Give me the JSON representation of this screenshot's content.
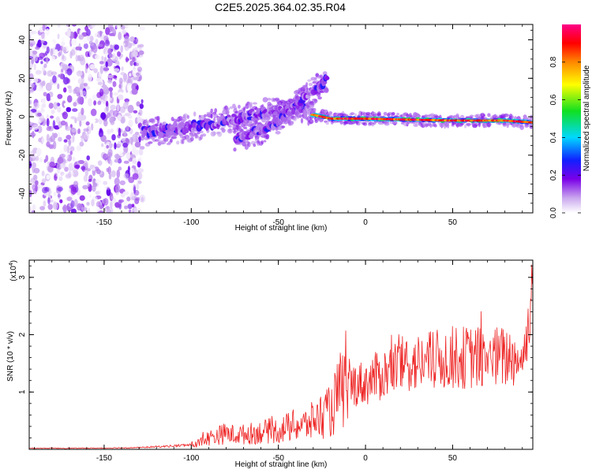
{
  "title": "C2E5.2025.364.02.35.R04",
  "chart_data": [
    {
      "type": "heatmap",
      "xlabel": "Height of straight line (km)",
      "ylabel": "Frequency (Hz)",
      "xlim": [
        -193,
        96
      ],
      "ylim": [
        -50,
        48
      ],
      "xticks": [
        -150,
        -100,
        -50,
        0,
        50
      ],
      "yticks": [
        -40,
        -20,
        0,
        20,
        40
      ],
      "colorbar": {
        "label": "Normalized spectral amplitude",
        "range": [
          0,
          1
        ],
        "ticks": [
          0.0,
          0.2,
          0.4,
          0.6,
          0.8
        ],
        "tick_labels": [
          "0.0",
          "0.2",
          "0.4",
          "0.6",
          "0.8"
        ]
      },
      "features": [
        {
          "name": "scattered noise",
          "x_range": [
            -193,
            -128
          ],
          "y_range": [
            -50,
            48
          ],
          "amplitude_range": [
            0.0,
            0.15
          ]
        },
        {
          "name": "lower track",
          "points": [
            [
              -128,
              -8
            ],
            [
              -110,
              -7
            ],
            [
              -90,
              -4
            ],
            [
              -70,
              0
            ],
            [
              -50,
              3
            ],
            [
              -40,
              4
            ],
            [
              -30,
              3
            ]
          ],
          "amplitude": 0.3
        },
        {
          "name": "rising branch",
          "points": [
            [
              -75,
              -12
            ],
            [
              -60,
              -7
            ],
            [
              -50,
              -2
            ],
            [
              -42,
              4
            ],
            [
              -35,
              10
            ],
            [
              -22,
              20
            ]
          ],
          "amplitude": 0.3
        },
        {
          "name": "central track",
          "points": [
            [
              -30,
              1
            ],
            [
              -20,
              -1
            ],
            [
              0,
              -1
            ],
            [
              50,
              -2
            ],
            [
              80,
              -2
            ],
            [
              96,
              -3
            ]
          ],
          "amplitude": 0.9
        }
      ]
    },
    {
      "type": "line",
      "xlabel": "Height of straight line (km)",
      "ylabel": "SNR (10 * v/v)",
      "multiplier": "(x10",
      "multiplier_exp": "4",
      "multiplier_close": ")",
      "xlim": [
        -193,
        96
      ],
      "ylim": [
        0,
        3.3
      ],
      "xticks": [
        -150,
        -100,
        -50,
        0,
        50
      ],
      "yticks": [
        1,
        2,
        3
      ],
      "color": "#ee2222",
      "x": [
        -193,
        -160,
        -130,
        -110,
        -100,
        -95,
        -90,
        -85,
        -80,
        -75,
        -70,
        -65,
        -60,
        -55,
        -50,
        -45,
        -40,
        -35,
        -30,
        -25,
        -20,
        -17,
        -15,
        -12,
        -10,
        -5,
        0,
        5,
        10,
        15,
        20,
        25,
        30,
        40,
        50,
        60,
        70,
        80,
        85,
        88,
        90,
        92,
        94,
        96
      ],
      "y": [
        0.02,
        0.02,
        0.03,
        0.06,
        0.08,
        0.12,
        0.2,
        0.24,
        0.28,
        0.25,
        0.26,
        0.28,
        0.3,
        0.32,
        0.33,
        0.38,
        0.42,
        0.42,
        0.5,
        0.6,
        0.65,
        0.85,
        1.0,
        1.05,
        1.1,
        1.15,
        1.15,
        1.25,
        1.3,
        1.4,
        1.45,
        1.5,
        1.5,
        1.55,
        1.6,
        1.6,
        1.6,
        1.6,
        1.62,
        1.55,
        1.6,
        1.8,
        2.4,
        2.9
      ]
    }
  ]
}
